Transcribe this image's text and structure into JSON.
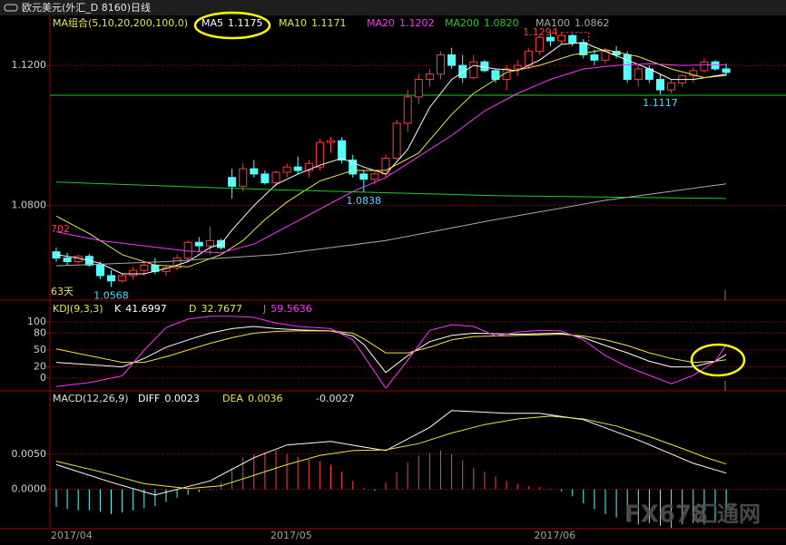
{
  "header": {
    "title": "欧元美元(外汇_D 8160)日线"
  },
  "watermark": {
    "brand": "FX678",
    "name": "汇通网"
  },
  "chart_data": [
    {
      "type": "candlestick",
      "legend_title": "MA组合(5,10,20,200,100,0)",
      "categories": [
        "2017/04",
        null,
        null,
        null,
        null,
        null,
        null,
        null,
        null,
        null,
        null,
        null,
        null,
        null,
        null,
        null,
        null,
        null,
        null,
        null,
        "2017/05",
        null,
        null,
        null,
        null,
        null,
        null,
        null,
        null,
        null,
        null,
        null,
        null,
        null,
        null,
        null,
        null,
        null,
        null,
        null,
        null,
        null,
        null,
        null,
        "2017/06",
        null,
        null,
        null,
        null,
        null,
        null,
        null,
        null,
        null,
        null,
        null,
        null,
        null,
        null,
        null,
        null,
        null
      ],
      "open": [
        1.0668,
        1.065,
        1.064,
        1.0655,
        1.063,
        1.06,
        1.0585,
        1.06,
        1.0615,
        1.063,
        1.0612,
        1.0622,
        1.065,
        1.0695,
        1.0685,
        1.07,
        1.088,
        1.0855,
        1.0905,
        1.089,
        1.0865,
        1.0895,
        1.091,
        1.09,
        1.091,
        1.098,
        1.0985,
        1.093,
        1.089,
        1.0875,
        1.089,
        1.0935,
        1.1035,
        1.111,
        1.116,
        1.1175,
        1.123,
        1.12,
        1.1165,
        1.121,
        1.1185,
        1.116,
        1.119,
        1.12,
        1.124,
        1.128,
        1.127,
        1.1285,
        1.1265,
        1.123,
        1.1215,
        1.124,
        1.123,
        1.116,
        1.119,
        1.116,
        1.113,
        1.115,
        1.117,
        1.1185,
        1.121,
        1.119
      ],
      "high": [
        1.068,
        1.0665,
        1.066,
        1.0662,
        1.064,
        1.0615,
        1.0605,
        1.0625,
        1.064,
        1.065,
        1.063,
        1.066,
        1.07,
        1.071,
        1.074,
        1.0705,
        1.0905,
        1.092,
        1.093,
        1.09,
        1.09,
        1.092,
        1.094,
        1.093,
        1.099,
        1.0995,
        1.0995,
        1.0945,
        1.09,
        1.09,
        1.0945,
        1.1045,
        1.113,
        1.1175,
        1.119,
        1.124,
        1.125,
        1.123,
        1.123,
        1.1215,
        1.119,
        1.12,
        1.1215,
        1.125,
        1.1285,
        1.129,
        1.1294,
        1.129,
        1.1275,
        1.1245,
        1.125,
        1.1255,
        1.124,
        1.12,
        1.12,
        1.1175,
        1.116,
        1.1175,
        1.1195,
        1.122,
        1.1215,
        1.1205
      ],
      "low": [
        1.064,
        1.063,
        1.0635,
        1.0625,
        1.059,
        1.0568,
        1.058,
        1.059,
        1.06,
        1.0605,
        1.06,
        1.0615,
        1.064,
        1.067,
        1.066,
        1.0675,
        1.082,
        1.084,
        1.088,
        1.086,
        1.0855,
        1.088,
        1.089,
        1.088,
        1.09,
        1.095,
        1.092,
        1.088,
        1.0838,
        1.086,
        1.088,
        1.093,
        1.101,
        1.109,
        1.114,
        1.116,
        1.119,
        1.115,
        1.116,
        1.118,
        1.115,
        1.113,
        1.117,
        1.119,
        1.123,
        1.1255,
        1.126,
        1.1255,
        1.122,
        1.12,
        1.1205,
        1.122,
        1.115,
        1.114,
        1.115,
        1.1117,
        1.112,
        1.114,
        1.115,
        1.118,
        1.1185,
        1.117
      ],
      "close": [
        1.065,
        1.064,
        1.0655,
        1.063,
        1.06,
        1.0585,
        1.06,
        1.0615,
        1.063,
        1.0612,
        1.0622,
        1.065,
        1.0695,
        1.0685,
        1.07,
        1.068,
        1.0855,
        1.0905,
        1.089,
        1.0865,
        1.0895,
        1.091,
        1.09,
        1.092,
        1.098,
        1.0985,
        1.093,
        1.089,
        1.0875,
        1.089,
        1.0935,
        1.1035,
        1.111,
        1.116,
        1.1175,
        1.123,
        1.12,
        1.1165,
        1.121,
        1.1185,
        1.116,
        1.119,
        1.12,
        1.124,
        1.128,
        1.127,
        1.1285,
        1.1265,
        1.123,
        1.1215,
        1.124,
        1.123,
        1.116,
        1.119,
        1.116,
        1.113,
        1.115,
        1.117,
        1.1185,
        1.121,
        1.119,
        1.118
      ],
      "up_color": "#ff3c3c",
      "down_color": "#54ffff",
      "ylim": [
        1.053,
        1.134
      ],
      "yticks": [
        {
          "value": 1.12,
          "label": "1.1200"
        },
        {
          "value": 1.08,
          "label": "1.0800"
        }
      ],
      "grid": true,
      "series": [
        {
          "name": "MA5",
          "color": "#ffffff",
          "legend_value": 1.1175,
          "x": [
            0,
            2,
            4,
            6,
            8,
            10,
            12,
            14,
            15,
            16,
            18,
            20,
            22,
            24,
            26,
            28,
            30,
            32,
            34,
            36,
            38,
            40,
            42,
            44,
            46,
            48,
            50,
            52,
            54,
            56,
            58,
            61
          ],
          "values": [
            1.066,
            1.065,
            1.0635,
            1.0605,
            1.0605,
            1.062,
            1.064,
            1.068,
            1.069,
            1.073,
            1.08,
            1.086,
            1.089,
            1.0915,
            1.0935,
            1.091,
            1.089,
            1.096,
            1.108,
            1.116,
            1.12,
            1.119,
            1.1185,
            1.1215,
            1.126,
            1.1265,
            1.124,
            1.1215,
            1.119,
            1.116,
            1.116,
            1.1175
          ]
        },
        {
          "name": "MA10",
          "color": "#e6e64c",
          "legend_value": 1.1171,
          "x": [
            0,
            3,
            6,
            9,
            12,
            15,
            17,
            19,
            21,
            24,
            27,
            30,
            33,
            36,
            38,
            41,
            44,
            47,
            50,
            53,
            56,
            59,
            61
          ],
          "values": [
            1.077,
            1.072,
            1.066,
            1.063,
            1.0625,
            1.066,
            1.07,
            1.076,
            1.081,
            1.087,
            1.09,
            1.09,
            1.095,
            1.106,
            1.112,
            1.118,
            1.12,
            1.123,
            1.1245,
            1.1225,
            1.119,
            1.1165,
            1.1171
          ]
        },
        {
          "name": "MA20",
          "color": "#ff33ff",
          "legend_value": 1.1202,
          "x": [
            0,
            4,
            8,
            12,
            15,
            18,
            21,
            24,
            27,
            30,
            33,
            36,
            39,
            42,
            45,
            48,
            51,
            54,
            57,
            61
          ],
          "values": [
            1.0725,
            1.07,
            1.0685,
            1.067,
            1.0665,
            1.069,
            1.074,
            1.079,
            1.084,
            1.088,
            1.094,
            1.1,
            1.107,
            1.112,
            1.116,
            1.119,
            1.12,
            1.1205,
            1.12,
            1.1202
          ]
        },
        {
          "name": "MA200",
          "color": "#22cc22",
          "legend_value": {
            "value": 1.082,
            "label": "1.0820"
          },
          "x": [
            0,
            20,
            40,
            61
          ],
          "values": [
            1.0867,
            1.0845,
            1.0828,
            1.082
          ]
        },
        {
          "name": "MA100",
          "color": "#aaaaaa",
          "legend_value": 1.0862,
          "x": [
            0,
            10,
            20,
            30,
            40,
            50,
            61
          ],
          "values": [
            1.0628,
            1.064,
            1.066,
            1.07,
            1.076,
            1.0815,
            1.0862
          ]
        }
      ],
      "reference_line": {
        "value": 1.1115,
        "color": "#22cc22"
      },
      "annotations": [
        {
          "value": 1.0568,
          "x": 5
        },
        {
          "value": 1.0838,
          "x": 28
        },
        {
          "value": 1.1117,
          "x": 55
        }
      ],
      "high_marker": {
        "value": 1.1294,
        "x": 46
      },
      "left_labels": {
        "top": "702",
        "bottom": "63天"
      }
    },
    {
      "type": "line",
      "title": "KDJ(9,3,3)",
      "ylim": [
        -21,
        135.5
      ],
      "yticks": [
        100,
        80,
        50,
        20,
        0
      ],
      "grid": true,
      "series": [
        {
          "name": "K",
          "color": "#ffffff",
          "x": [
            0,
            3,
            6,
            8,
            10,
            12,
            14,
            16,
            18,
            20,
            22,
            25,
            27,
            28,
            30,
            32,
            34,
            36,
            38,
            42,
            46,
            48,
            50,
            52,
            54,
            56,
            58,
            60,
            61
          ],
          "values": [
            28,
            24,
            20,
            35,
            55,
            68,
            80,
            88,
            92,
            88,
            86,
            84,
            75,
            60,
            10,
            40,
            65,
            76,
            80,
            78,
            80,
            72,
            58,
            45,
            30,
            20,
            20,
            30,
            41.6997
          ]
        },
        {
          "name": "D",
          "color": "#e6e64c",
          "x": [
            0,
            3,
            6,
            8,
            10,
            12,
            14,
            16,
            18,
            20,
            22,
            25,
            27,
            28,
            30,
            32,
            34,
            36,
            38,
            42,
            46,
            48,
            50,
            52,
            54,
            56,
            58,
            60,
            61
          ],
          "values": [
            52,
            40,
            28,
            28,
            38,
            50,
            62,
            72,
            80,
            83,
            84,
            84,
            80,
            70,
            45,
            45,
            55,
            68,
            74,
            76,
            78,
            75,
            68,
            58,
            45,
            35,
            28,
            30,
            32.7677
          ]
        },
        {
          "name": "J",
          "color": "#ff33ff",
          "x": [
            0,
            3,
            6,
            8,
            10,
            12,
            14,
            16,
            18,
            20,
            22,
            25,
            27,
            28,
            30,
            32,
            34,
            36,
            38,
            40,
            42,
            44,
            46,
            48,
            50,
            52,
            54,
            56,
            58,
            60,
            61
          ],
          "values": [
            -15,
            -8,
            4,
            50,
            90,
            105,
            110,
            110,
            108,
            98,
            92,
            88,
            68,
            40,
            -18,
            32,
            85,
            95,
            92,
            75,
            82,
            85,
            84,
            68,
            40,
            20,
            5,
            -10,
            5,
            30,
            59.5636
          ]
        }
      ]
    },
    {
      "type": "bar",
      "title": "MACD(12,26,9)",
      "values": [
        -0.0025,
        -0.0028,
        -0.003,
        -0.003,
        -0.0032,
        -0.0035,
        -0.0033,
        -0.003,
        -0.0027,
        -0.0024,
        -0.0018,
        -0.0012,
        -0.0008,
        -0.0004,
        -0.0001,
        0.001,
        0.003,
        0.0045,
        0.005,
        0.0052,
        0.0055,
        0.005,
        0.0046,
        0.0042,
        0.004,
        0.0035,
        0.0025,
        0.0012,
        0.0002,
        -0.0002,
        0.001,
        0.0025,
        0.0038,
        0.0048,
        0.0052,
        0.0055,
        0.005,
        0.0042,
        0.003,
        0.0025,
        0.0018,
        0.0012,
        0.0008,
        0.0005,
        0.0003,
        0.0001,
        -0.0003,
        -0.001,
        -0.002,
        -0.0028,
        -0.0035,
        -0.004,
        -0.0045,
        -0.005,
        -0.0048,
        -0.0052,
        -0.0055,
        -0.005,
        -0.0048,
        -0.005,
        -0.0045,
        -0.0027
      ],
      "up_color": "#ff3c3c",
      "down_color": "#54ffff",
      "ylim": [
        -0.0056,
        0.014
      ],
      "yticks": [
        {
          "value": 0.005,
          "label": "0.0050"
        },
        {
          "value": 0,
          "label": "0.0000"
        }
      ],
      "grid": true,
      "series": [
        {
          "name": "DIFF",
          "color": "#ffffff",
          "x": [
            0,
            5,
            9,
            14,
            18,
            21,
            25,
            28,
            30,
            34,
            36,
            41,
            44,
            48,
            53,
            58,
            61
          ],
          "values": [
            0.0035,
            0.001,
            -0.0008,
            0.0012,
            0.0045,
            0.0063,
            0.0068,
            0.006,
            0.0055,
            0.0088,
            0.0112,
            0.0108,
            0.0108,
            0.0099,
            0.007,
            0.0037,
            0.0023
          ]
        },
        {
          "name": "DEA",
          "color": "#e6e64c",
          "x": [
            0,
            4,
            8,
            12,
            15,
            18,
            21,
            24,
            27,
            30,
            33,
            36,
            39,
            42,
            45,
            48,
            51,
            54,
            57,
            59,
            61
          ],
          "values": [
            0.004,
            0.0025,
            0.0008,
            0.0001,
            0.0005,
            0.002,
            0.0035,
            0.0048,
            0.0055,
            0.0056,
            0.0065,
            0.008,
            0.0092,
            0.01,
            0.0104,
            0.01,
            0.009,
            0.0075,
            0.0058,
            0.0046,
            0.0036
          ]
        }
      ]
    }
  ]
}
